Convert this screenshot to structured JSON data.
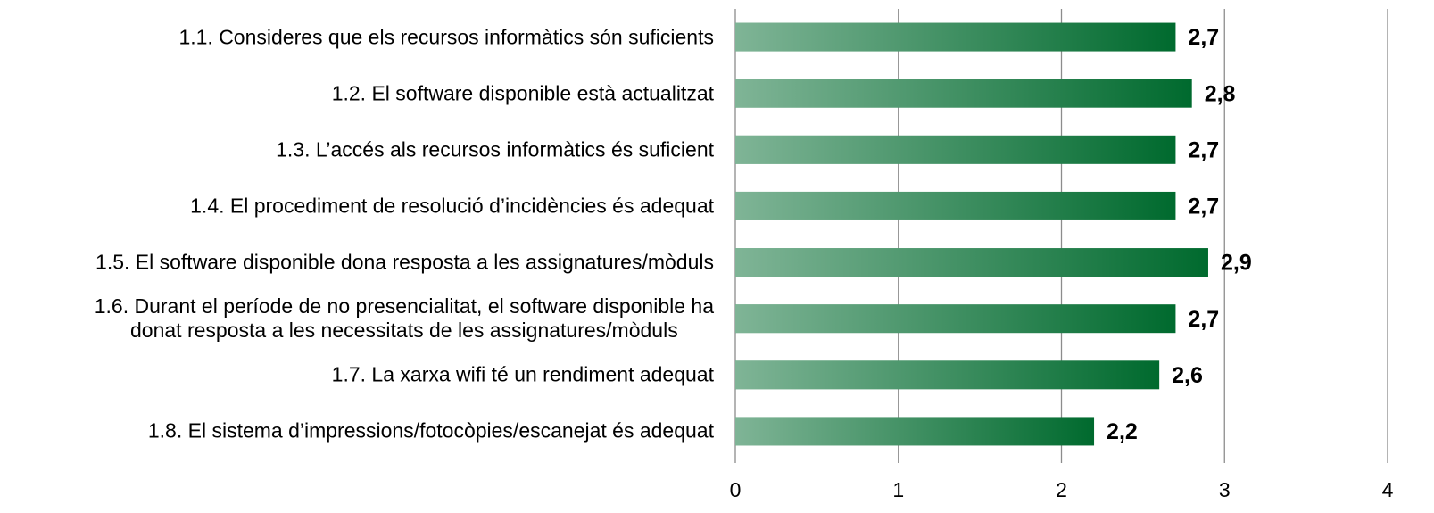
{
  "chart_data": {
    "type": "bar",
    "orientation": "horizontal",
    "categories": [
      "1.1. Consideres que els recursos informàtics són suficients",
      "1.2. El software disponible està actualitzat",
      "1.3. L’accés als recursos informàtics és suficient",
      "1.4. El procediment de resolució d’incidències és adequat",
      "1.5. El software disponible dona resposta a les assignatures/mòduls",
      "1.6. Durant el període de no presencialitat, el software disponible ha\ndonat resposta a les necessitats de les assignatures/mòduls",
      "1.7. La xarxa wifi té un rendiment adequat",
      "1.8. El sistema d’impressions/fotocòpies/escanejat és adequat"
    ],
    "values": [
      2.7,
      2.8,
      2.7,
      2.7,
      2.9,
      2.7,
      2.6,
      2.2
    ],
    "value_labels": [
      "2,7",
      "2,8",
      "2,7",
      "2,7",
      "2,9",
      "2,7",
      "2,6",
      "2,2"
    ],
    "color": "#006a2e",
    "xlim": [
      0,
      4
    ],
    "xticks": [
      0,
      1,
      2,
      3,
      4
    ],
    "grid": true
  }
}
